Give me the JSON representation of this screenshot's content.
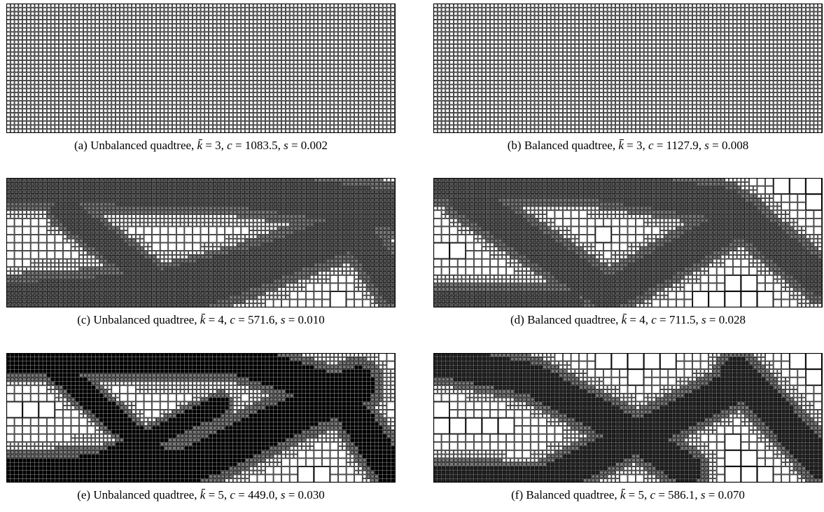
{
  "figure": {
    "panels": [
      {
        "id": "a",
        "label": "(a)",
        "tree": "Unbalanced quadtree",
        "k": "3",
        "c": "1083.5",
        "s": "0.002",
        "dark": 0.0
      },
      {
        "id": "b",
        "label": "(b)",
        "tree": "Balanced quadtree",
        "k": "3",
        "c": "1127.9",
        "s": "0.008",
        "dark": 0.0
      },
      {
        "id": "c",
        "label": "(c)",
        "tree": "Unbalanced quadtree",
        "k": "4",
        "c": "571.6",
        "s": "0.010",
        "dark": 0.15
      },
      {
        "id": "d",
        "label": "(d)",
        "tree": "Balanced quadtree",
        "k": "4",
        "c": "711.5",
        "s": "0.028",
        "dark": 0.15
      },
      {
        "id": "e",
        "label": "(e)",
        "tree": "Unbalanced quadtree",
        "k": "5",
        "c": "449.0",
        "s": "0.030",
        "dark": 0.9
      },
      {
        "id": "f",
        "label": "(f)",
        "tree": "Balanced quadtree",
        "k": "5",
        "c": "586.1",
        "s": "0.070",
        "dark": 0.6
      }
    ],
    "colors": {
      "cell_line": "#000000",
      "background": "#ffffff",
      "gray_cell": "#7a7a7a"
    }
  }
}
